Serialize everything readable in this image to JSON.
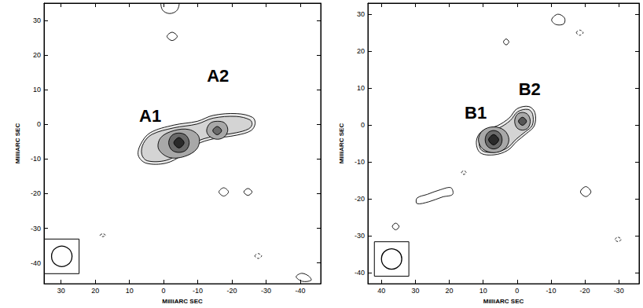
{
  "chart_data": [
    {
      "type": "contour",
      "xlabel": "MilliARC SEC",
      "ylabel": "MilliARC SEC",
      "xlim": [
        35,
        -46
      ],
      "ylim": [
        -46,
        35
      ],
      "xticks": [
        30,
        20,
        10,
        0,
        -10,
        -20,
        -30,
        -40
      ],
      "yticks": [
        30,
        20,
        10,
        0,
        -10,
        -20,
        -30,
        -40
      ],
      "contours": [
        {
          "color": "#ececec",
          "points": [
            [
              7.4,
              -9.0
            ],
            [
              6.7,
              -5.7
            ],
            [
              3.9,
              -2.4
            ],
            [
              -3.0,
              -0.2
            ],
            [
              -9.9,
              0.9
            ],
            [
              -14.5,
              2.6
            ],
            [
              -21.5,
              3.1
            ],
            [
              -26.1,
              2.0
            ],
            [
              -26.8,
              0.2
            ],
            [
              -25.6,
              -1.8
            ],
            [
              -21.5,
              -3.1
            ],
            [
              -14.5,
              -4.2
            ],
            [
              -9.9,
              -5.7
            ],
            [
              -5.3,
              -9.0
            ],
            [
              -0.7,
              -11.2
            ],
            [
              5.1,
              -11.2
            ]
          ]
        },
        {
          "color": "#d4d4d4",
          "points": [
            [
              6.4,
              -8.6
            ],
            [
              5.9,
              -5.5
            ],
            [
              3.4,
              -2.9
            ],
            [
              -3.0,
              -1.0
            ],
            [
              -9.8,
              0.1
            ],
            [
              -14.5,
              1.8
            ],
            [
              -21.2,
              2.3
            ],
            [
              -25.3,
              1.3
            ],
            [
              -25.9,
              0.0
            ],
            [
              -24.9,
              -1.3
            ],
            [
              -21.3,
              -2.4
            ],
            [
              -14.4,
              -3.5
            ],
            [
              -9.6,
              -5.0
            ],
            [
              -5.0,
              -8.2
            ],
            [
              -0.7,
              -10.4
            ],
            [
              4.8,
              -10.5
            ]
          ]
        },
        {
          "color": "#a8a8a8",
          "points": [
            [
              1.5,
              -7.0
            ],
            [
              0.8,
              -3.8
            ],
            [
              -3.0,
              -1.8
            ],
            [
              -7.5,
              -1.5
            ],
            [
              -10.3,
              -3.5
            ],
            [
              -9.8,
              -7.0
            ],
            [
              -6.0,
              -9.3
            ],
            [
              -1.5,
              -9.5
            ]
          ]
        },
        {
          "color": "#a8a8a8",
          "points": [
            [
              -12.6,
              -1.8
            ],
            [
              -13.6,
              0.3
            ],
            [
              -15.7,
              0.9
            ],
            [
              -17.9,
              0.4
            ],
            [
              -18.8,
              -1.6
            ],
            [
              -17.8,
              -3.6
            ],
            [
              -15.7,
              -4.3
            ],
            [
              -13.5,
              -3.5
            ]
          ]
        },
        {
          "color": "#6a6a6a",
          "points": [
            [
              -1.5,
              -5.3
            ],
            [
              -2.4,
              -3.2
            ],
            [
              -4.5,
              -2.5
            ],
            [
              -6.6,
              -3.2
            ],
            [
              -7.5,
              -5.3
            ],
            [
              -6.6,
              -7.4
            ],
            [
              -4.5,
              -8.1
            ],
            [
              -2.4,
              -7.4
            ]
          ]
        },
        {
          "color": "#2a2a2a",
          "points": [
            [
              -3.0,
              -5.3
            ],
            [
              -4.5,
              -3.8
            ],
            [
              -6.0,
              -5.3
            ],
            [
              -4.5,
              -6.8
            ]
          ]
        },
        {
          "color": "#6a6a6a",
          "points": [
            [
              -14.4,
              -1.8
            ],
            [
              -15.7,
              -0.6
            ],
            [
              -17.0,
              -1.8
            ],
            [
              -15.7,
              -3.0
            ]
          ]
        },
        {
          "points": [
            [
              0.5,
              35.5
            ],
            [
              0.3,
              33.0
            ],
            [
              -1.8,
              32.0
            ],
            [
              -4.0,
              33.0
            ],
            [
              -4.3,
              35.5
            ]
          ]
        },
        {
          "points": [
            [
              -1.0,
              25.4
            ],
            [
              -2.5,
              26.6
            ],
            [
              -4.0,
              25.4
            ],
            [
              -2.5,
              24.2
            ]
          ]
        },
        {
          "points": [
            [
              -16.2,
              -19.5
            ],
            [
              -17.6,
              -18.3
            ],
            [
              -19.0,
              -19.5
            ],
            [
              -17.6,
              -20.7
            ]
          ]
        },
        {
          "points": [
            [
              -23.5,
              -19.5
            ],
            [
              -24.7,
              -18.5
            ],
            [
              -25.9,
              -19.5
            ],
            [
              -24.7,
              -20.5
            ]
          ]
        },
        {
          "line_style": "dashed",
          "points": [
            [
              -26.7,
              -38.0
            ],
            [
              -27.7,
              -37.3
            ],
            [
              -28.7,
              -38.0
            ],
            [
              -27.7,
              -38.7
            ]
          ]
        },
        {
          "points": [
            [
              -38.8,
              -44.0
            ],
            [
              -40.4,
              -43.0
            ],
            [
              -42.5,
              -43.8
            ],
            [
              -43.2,
              -45.0
            ],
            [
              -40.6,
              -45.3
            ]
          ]
        },
        {
          "line_style": "dashed",
          "points": [
            [
              18.6,
              -32.0
            ],
            [
              17.8,
              -31.6
            ],
            [
              17.0,
              -32.0
            ],
            [
              17.8,
              -32.4
            ]
          ]
        }
      ],
      "annotations": [
        {
          "text": "A1",
          "x": 3.9,
          "y": 2.4
        },
        {
          "text": "A2",
          "x": -15.9,
          "y": 14.0
        }
      ],
      "beam": {
        "x": 29.8,
        "y": -38.1,
        "diameter": 6
      }
    },
    {
      "type": "contour",
      "xlabel": "MilliARC SEC",
      "ylabel": "MilliARC SEC",
      "xlim": [
        44,
        -36
      ],
      "ylim": [
        -43,
        33
      ],
      "xticks": [
        40,
        30,
        20,
        10,
        0,
        -10,
        -20,
        -30
      ],
      "yticks": [
        30,
        20,
        10,
        0,
        -10,
        -20,
        -30,
        -40
      ],
      "contours": [
        {
          "color": "#ececec",
          "points": [
            [
              12.0,
              -4.4
            ],
            [
              10.4,
              -1.7
            ],
            [
              5.8,
              -0.2
            ],
            [
              2.3,
              1.9
            ],
            [
              0.0,
              4.4
            ],
            [
              -3.5,
              5.0
            ],
            [
              -5.3,
              3.3
            ],
            [
              -5.1,
              -0.2
            ],
            [
              -2.8,
              -2.3
            ],
            [
              0.0,
              -4.4
            ],
            [
              2.8,
              -6.9
            ],
            [
              6.9,
              -8.1
            ],
            [
              10.9,
              -7.5
            ]
          ]
        },
        {
          "color": "#d4d4d4",
          "points": [
            [
              11.2,
              -4.4
            ],
            [
              9.9,
              -2.2
            ],
            [
              5.5,
              -0.9
            ],
            [
              2.0,
              1.2
            ],
            [
              -0.2,
              3.6
            ],
            [
              -3.3,
              4.2
            ],
            [
              -4.6,
              2.9
            ],
            [
              -4.5,
              -0.1
            ],
            [
              -2.5,
              -1.8
            ],
            [
              0.2,
              -3.8
            ],
            [
              3.0,
              -6.3
            ],
            [
              6.8,
              -7.4
            ],
            [
              10.4,
              -6.9
            ]
          ]
        },
        {
          "color": "#a8a8a8",
          "points": [
            [
              11.4,
              -4.0
            ],
            [
              10.1,
              -1.5
            ],
            [
              6.9,
              -0.5
            ],
            [
              3.7,
              -1.5
            ],
            [
              2.4,
              -4.0
            ],
            [
              3.7,
              -6.5
            ],
            [
              6.9,
              -7.5
            ],
            [
              10.1,
              -6.5
            ]
          ]
        },
        {
          "color": "#a8a8a8",
          "points": [
            [
              0.7,
              1.0
            ],
            [
              0.0,
              2.8
            ],
            [
              -1.6,
              3.4
            ],
            [
              -3.2,
              2.8
            ],
            [
              -3.9,
              1.0
            ],
            [
              -3.2,
              -0.8
            ],
            [
              -1.6,
              -1.4
            ],
            [
              0.0,
              -0.8
            ]
          ]
        },
        {
          "color": "#6a6a6a",
          "points": [
            [
              9.4,
              -4.0
            ],
            [
              8.7,
              -2.2
            ],
            [
              6.9,
              -1.5
            ],
            [
              5.1,
              -2.2
            ],
            [
              4.4,
              -4.0
            ],
            [
              5.1,
              -5.8
            ],
            [
              6.9,
              -6.5
            ],
            [
              8.7,
              -5.8
            ]
          ]
        },
        {
          "color": "#2a2a2a",
          "points": [
            [
              8.4,
              -4.0
            ],
            [
              6.9,
              -2.6
            ],
            [
              5.4,
              -4.0
            ],
            [
              6.9,
              -5.4
            ]
          ]
        },
        {
          "color": "#555555",
          "points": [
            [
              -0.4,
              1.0
            ],
            [
              -1.6,
              2.1
            ],
            [
              -2.8,
              1.0
            ],
            [
              -1.6,
              -0.1
            ]
          ]
        },
        {
          "points": [
            [
              -10.2,
              28.5
            ],
            [
              -12.0,
              30.0
            ],
            [
              -14.0,
              29.0
            ],
            [
              -13.8,
              27.4
            ],
            [
              -11.5,
              27.2
            ]
          ]
        },
        {
          "points": [
            [
              4.0,
              22.5
            ],
            [
              3.2,
              23.3
            ],
            [
              2.4,
              22.5
            ],
            [
              3.2,
              21.7
            ]
          ]
        },
        {
          "line_style": "dashed",
          "points": [
            [
              -17.5,
              25.0
            ],
            [
              -18.5,
              25.7
            ],
            [
              -19.5,
              25.0
            ],
            [
              -18.5,
              24.3
            ]
          ]
        },
        {
          "points": [
            [
              -18.7,
              -18.1
            ],
            [
              -20.3,
              -16.7
            ],
            [
              -21.8,
              -18.1
            ],
            [
              -20.3,
              -19.4
            ]
          ]
        },
        {
          "points": [
            [
              19.5,
              -17.0
            ],
            [
              22.5,
              -17.5
            ],
            [
              26.5,
              -18.8
            ],
            [
              29.5,
              -19.8
            ],
            [
              29.5,
              -21.3
            ],
            [
              26.0,
              -20.8
            ],
            [
              22.0,
              -19.5
            ],
            [
              19.0,
              -18.8
            ]
          ]
        },
        {
          "points": [
            [
              36.8,
              -27.5
            ],
            [
              35.8,
              -26.6
            ],
            [
              34.8,
              -27.5
            ],
            [
              35.8,
              -28.4
            ]
          ]
        },
        {
          "line_style": "dashed",
          "points": [
            [
              -28.9,
              -31.0
            ],
            [
              -29.8,
              -30.4
            ],
            [
              -30.7,
              -31.0
            ],
            [
              -29.8,
              -31.6
            ]
          ]
        },
        {
          "line_style": "dashed",
          "points": [
            [
              16.4,
              -12.9
            ],
            [
              15.7,
              -12.4
            ],
            [
              15.0,
              -12.9
            ],
            [
              15.7,
              -13.4
            ]
          ]
        }
      ],
      "annotations": [
        {
          "text": "B1",
          "x": 12.2,
          "y": 3.3
        },
        {
          "text": "B2",
          "x": -3.7,
          "y": 9.8
        }
      ],
      "beam": {
        "x": 37.0,
        "y": -36.3,
        "diameter": 6
      }
    }
  ]
}
